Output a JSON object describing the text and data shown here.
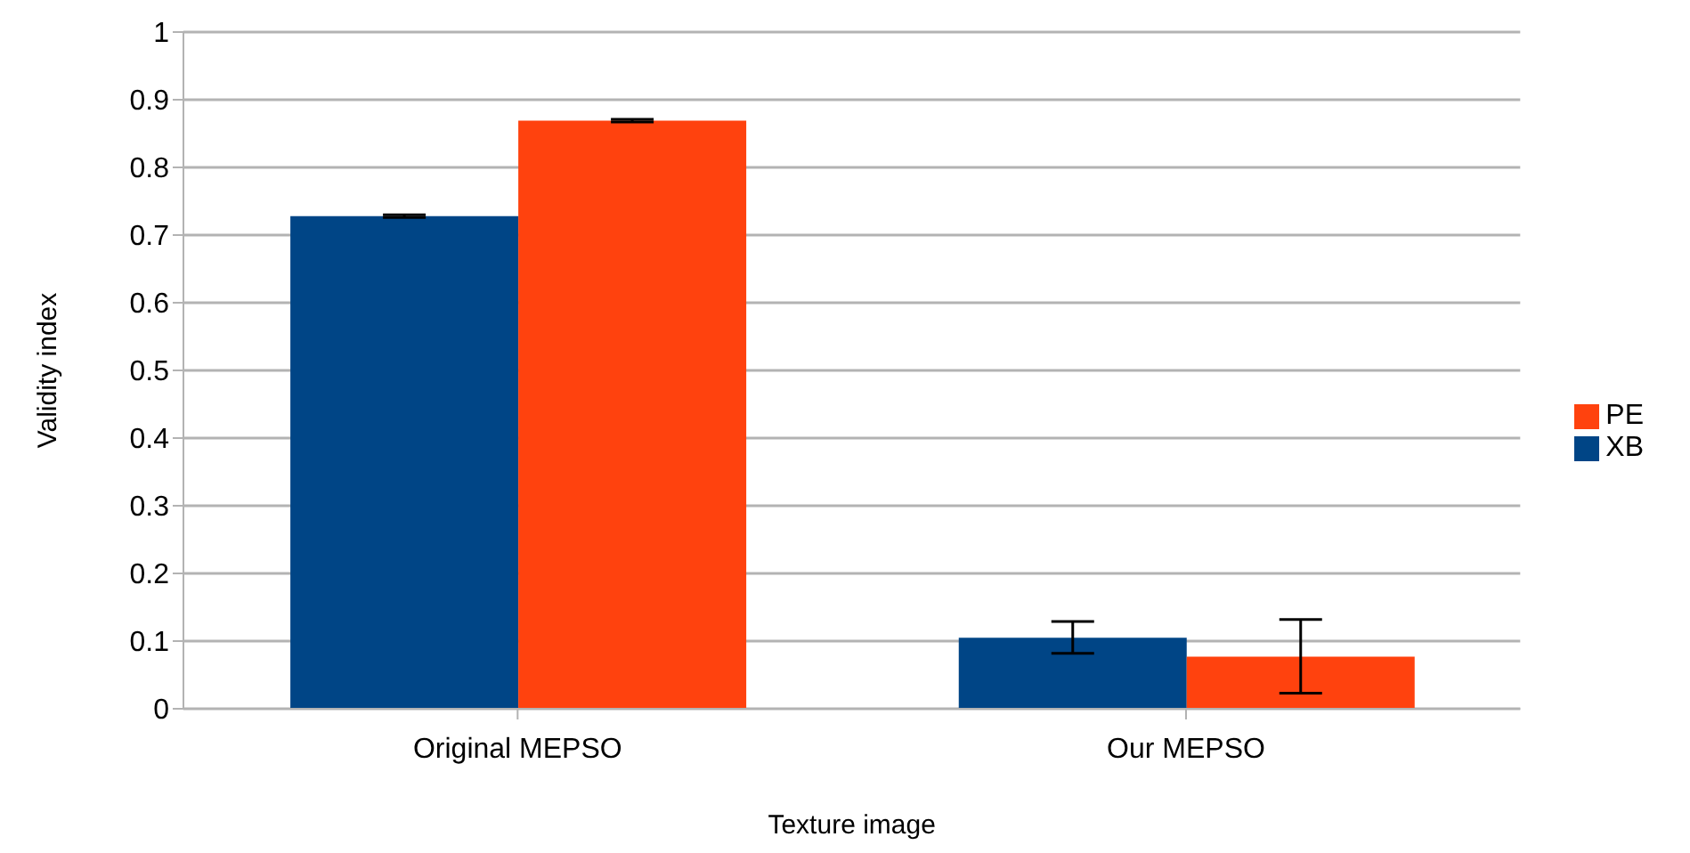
{
  "chart_data": {
    "type": "bar",
    "xlabel": "Texture image",
    "ylabel": "Validity index",
    "categories": [
      "Original MEPSO",
      "Our MEPSO"
    ],
    "series": [
      {
        "name": "XB",
        "color": "#004586",
        "values": [
          0.728,
          0.105
        ],
        "errors": [
          0.002,
          [
            0.082,
            0.129
          ]
        ]
      },
      {
        "name": "PE",
        "color": "#ff420e",
        "values": [
          0.869,
          0.077
        ],
        "errors": [
          0.002,
          [
            0.023,
            0.132
          ]
        ]
      }
    ],
    "ylim": [
      0,
      1
    ],
    "yticks": [
      0,
      0.1,
      0.2,
      0.3,
      0.4,
      0.5,
      0.6,
      0.7,
      0.8,
      0.9,
      1
    ],
    "grid": "y",
    "legend": "right"
  }
}
